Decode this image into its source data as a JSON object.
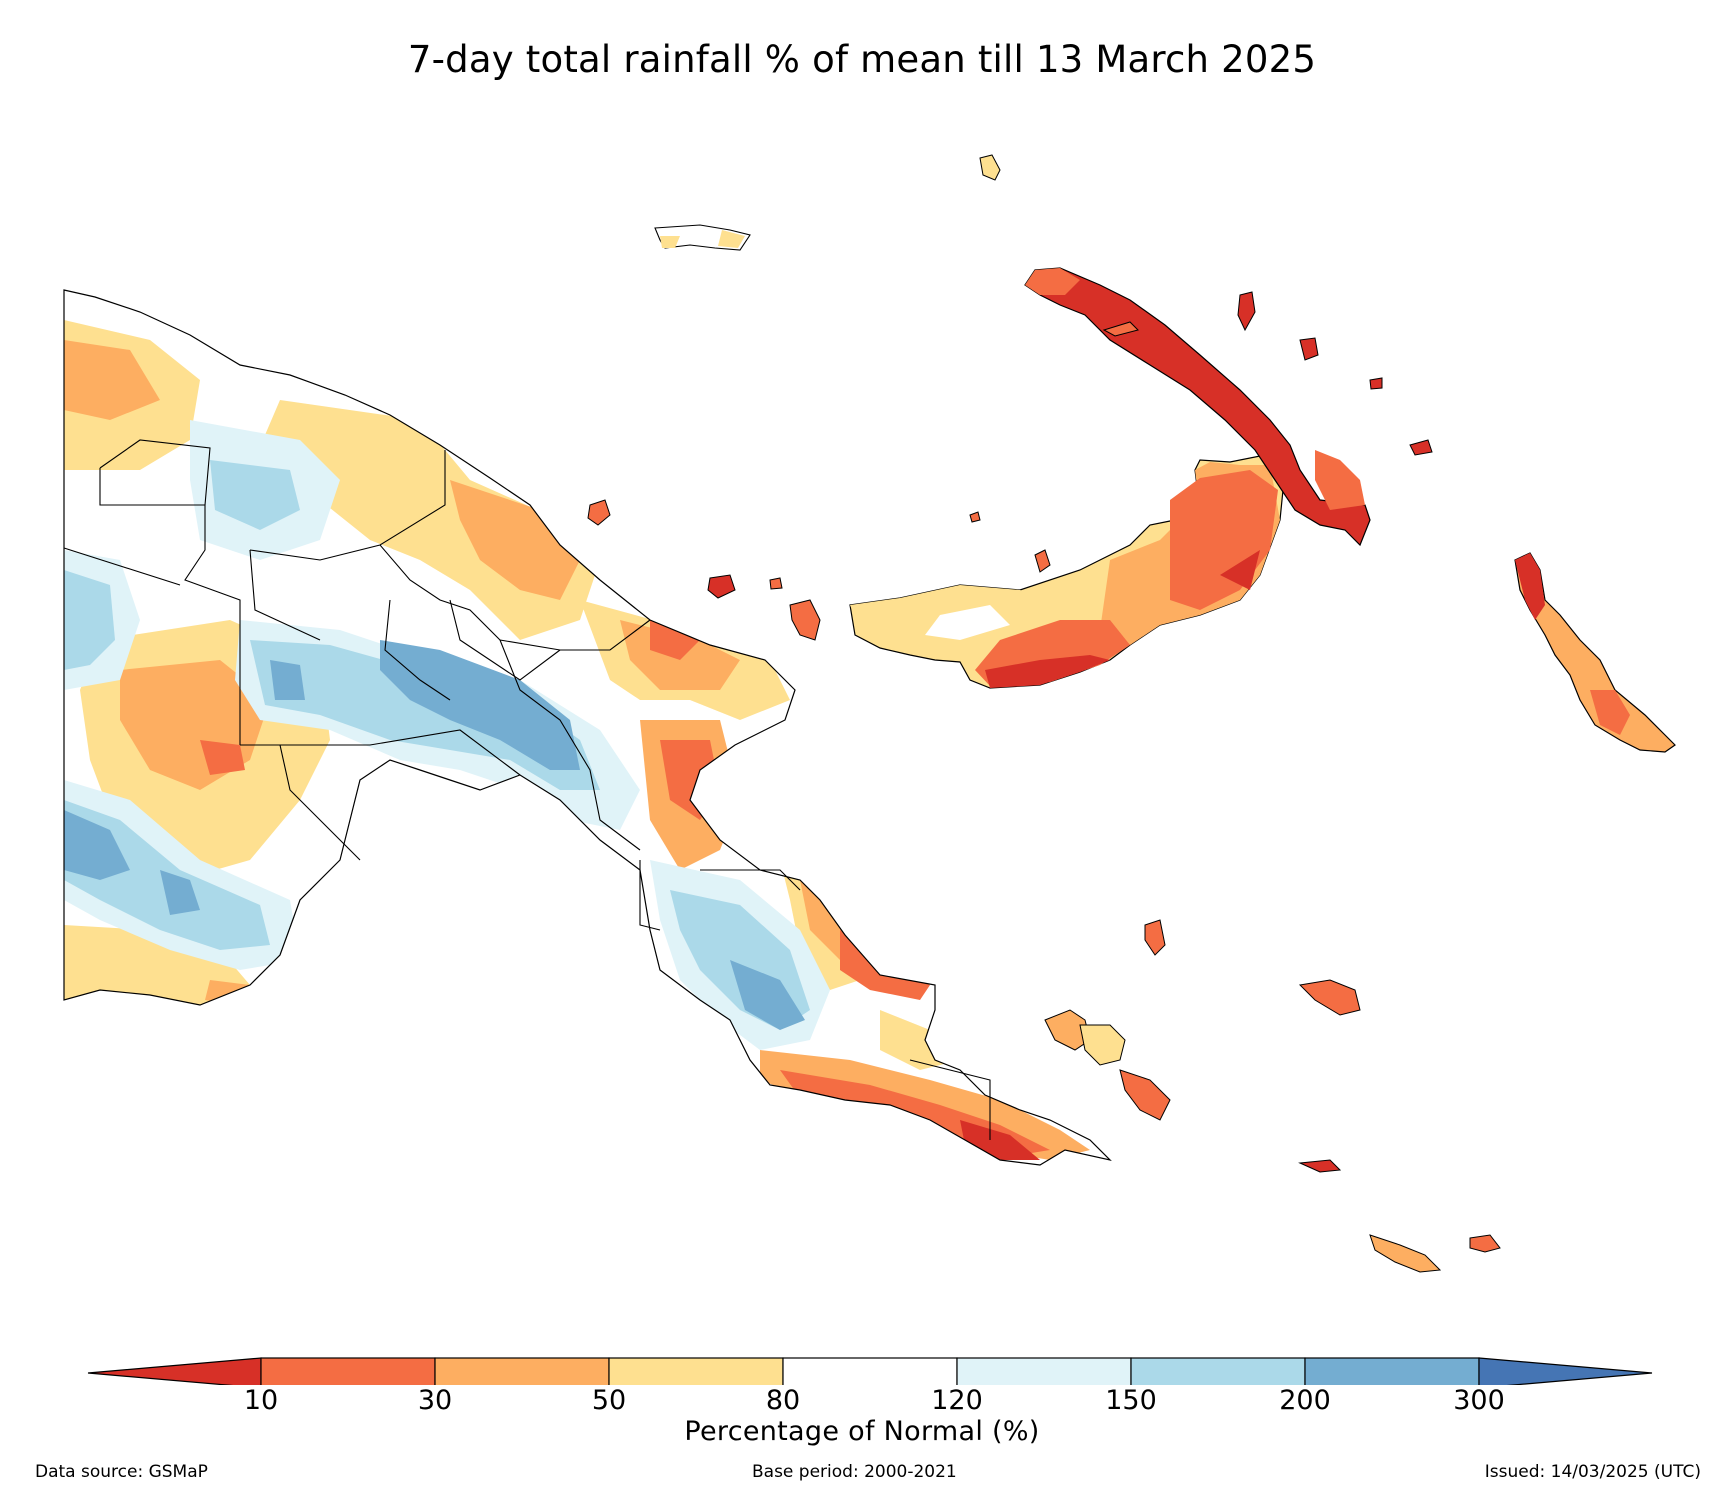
{
  "title": "7-day total rainfall % of mean till 13 March 2025",
  "colorbar": {
    "label": "Percentage of Normal (%)",
    "ticks": [
      "10",
      "30",
      "50",
      "80",
      "120",
      "150",
      "200",
      "300"
    ],
    "colors": [
      "#d73027",
      "#f46d43",
      "#fdae61",
      "#fee090",
      "#ffffff",
      "#e0f3f8",
      "#abd9e9",
      "#74add1",
      "#4575b4"
    ]
  },
  "footer": {
    "source": "Data source: GSMaP",
    "base_period": "Base period: 2000-2021",
    "issued": "Issued: 14/03/2025 (UTC)"
  }
}
